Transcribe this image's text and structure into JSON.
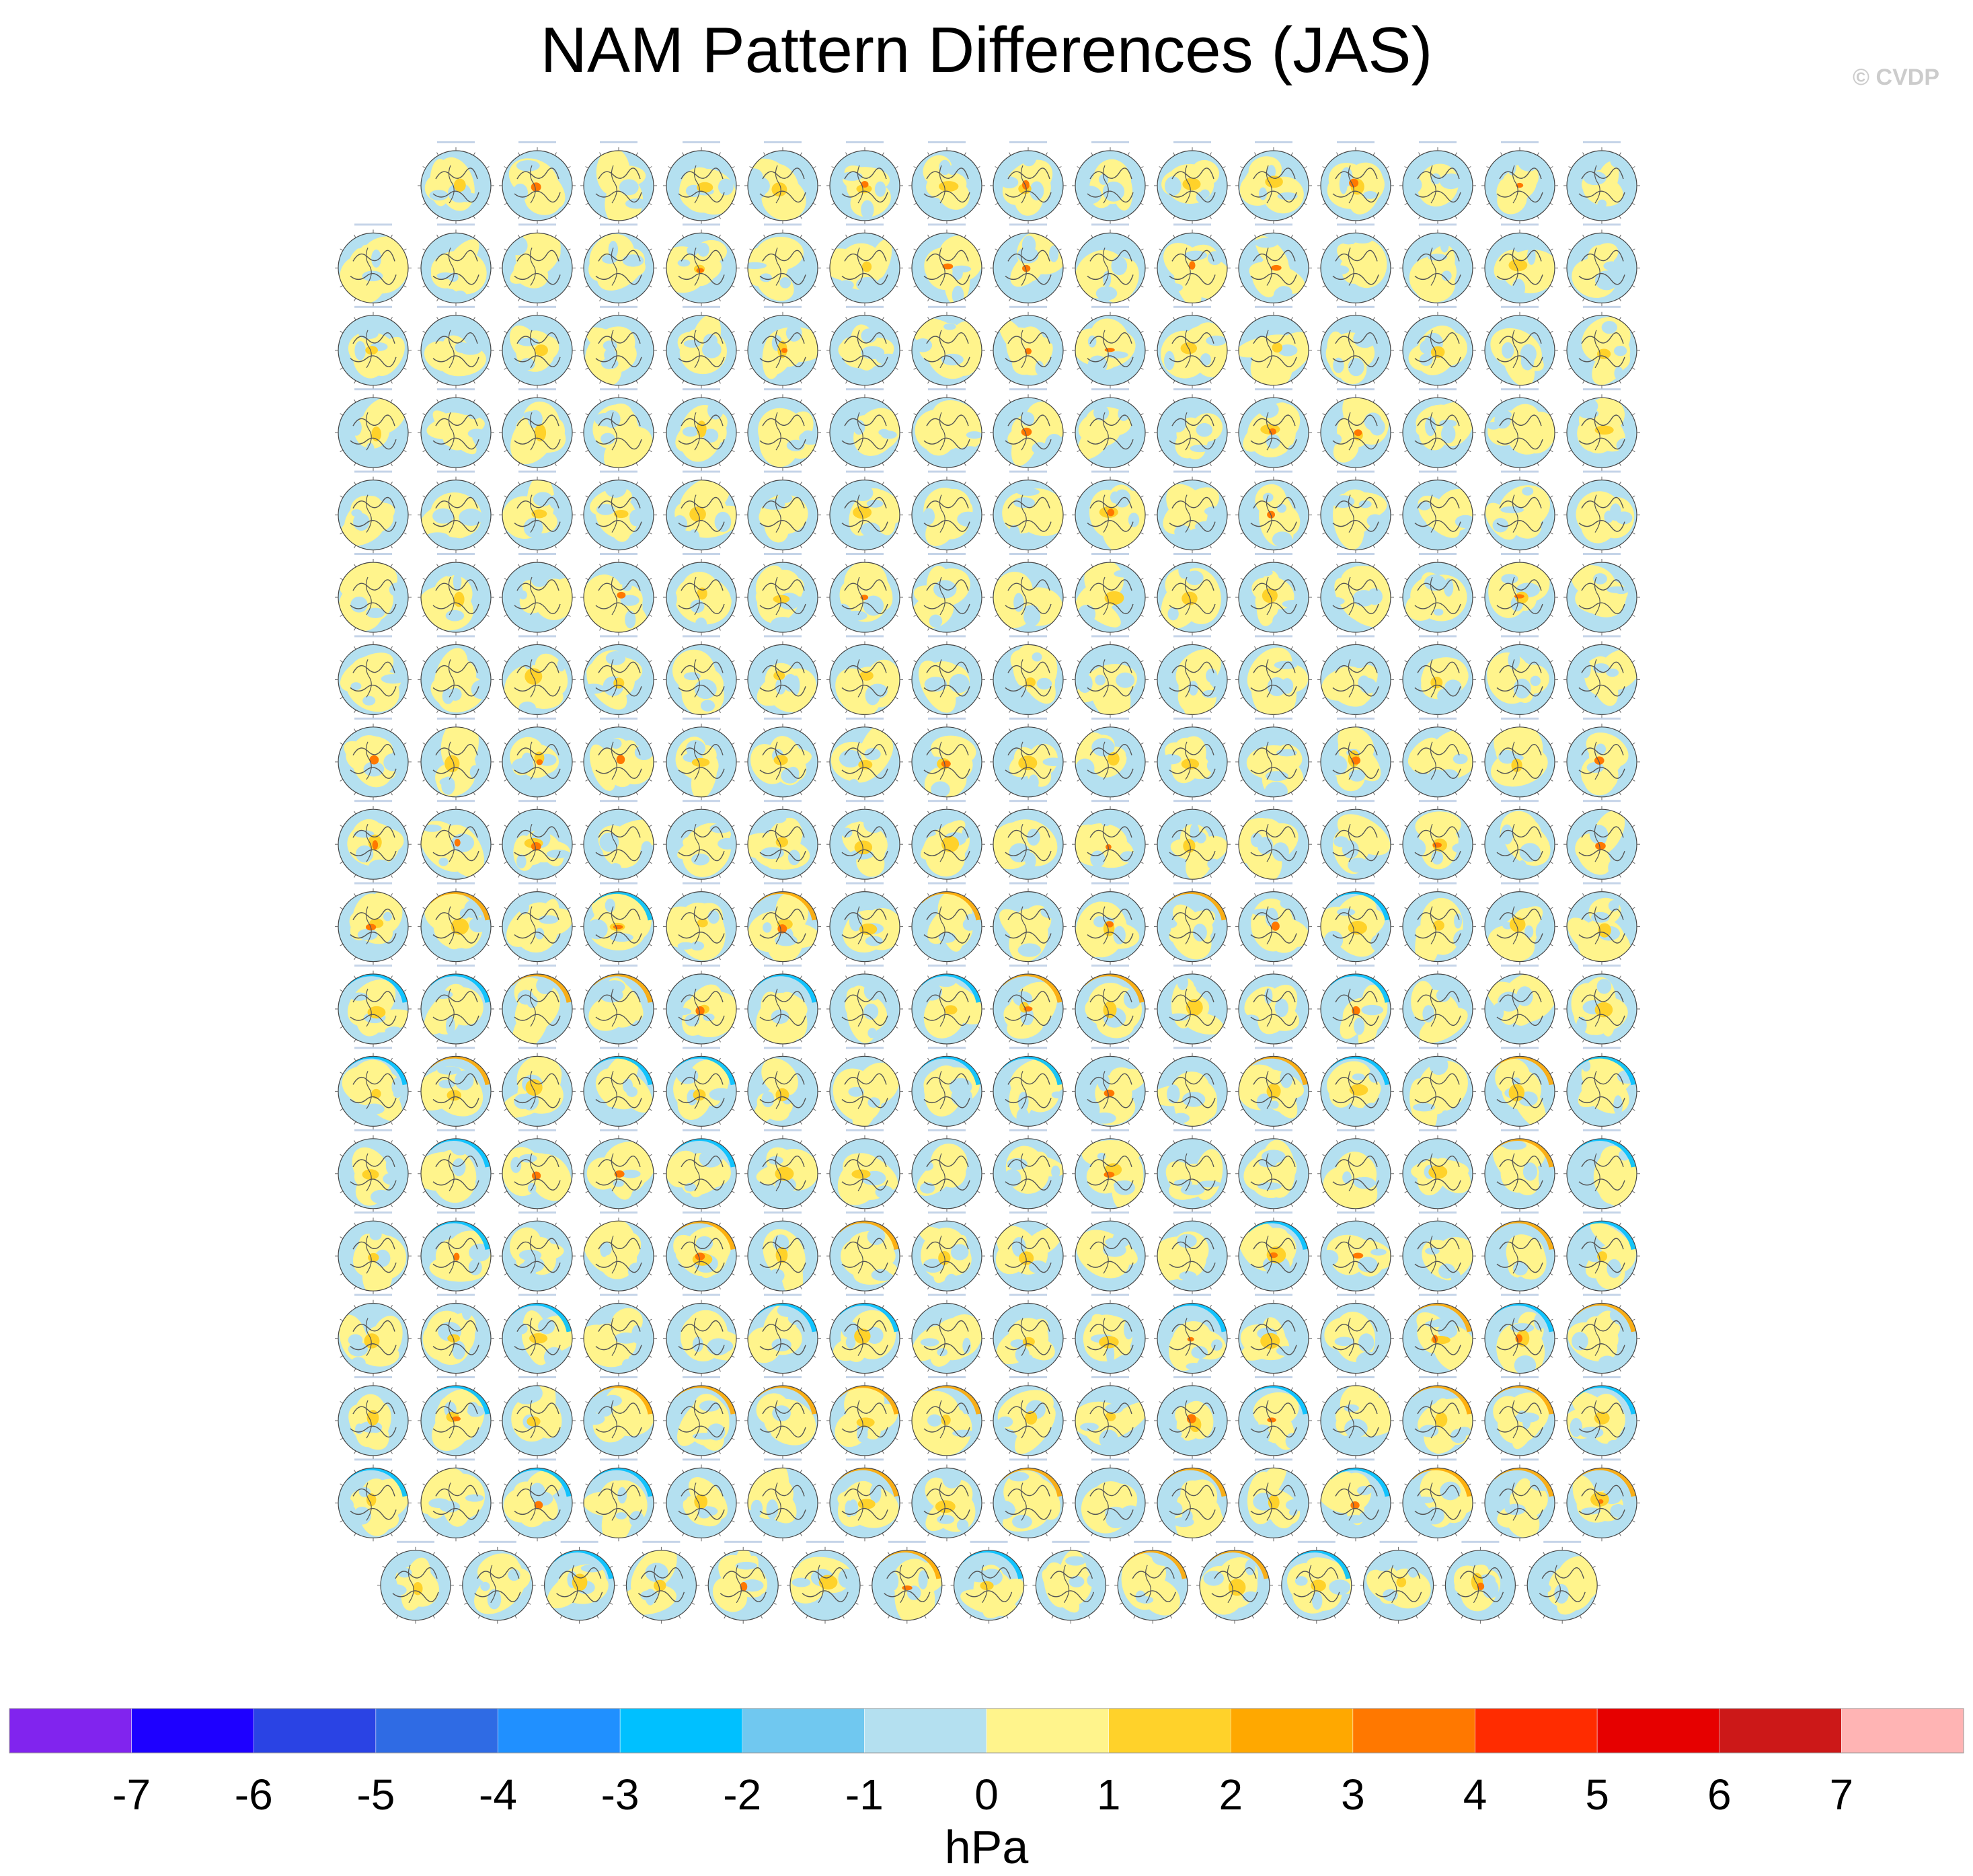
{
  "title": "NAM Pattern Differences (JAS)",
  "watermark": "© CVDP",
  "chart_data": {
    "type": "heatmap",
    "title": "NAM Pattern Differences (JAS)",
    "panel_rows": [
      {
        "row": 1,
        "count": 15
      },
      {
        "row": 2,
        "count": 16
      },
      {
        "row": 3,
        "count": 16
      },
      {
        "row": 4,
        "count": 16
      },
      {
        "row": 5,
        "count": 16
      },
      {
        "row": 6,
        "count": 16
      },
      {
        "row": 7,
        "count": 16
      },
      {
        "row": 8,
        "count": 16
      },
      {
        "row": 9,
        "count": 16
      },
      {
        "row": 10,
        "count": 16
      },
      {
        "row": 11,
        "count": 16
      },
      {
        "row": 12,
        "count": 16
      },
      {
        "row": 13,
        "count": 16
      },
      {
        "row": 14,
        "count": 16
      },
      {
        "row": 15,
        "count": 16
      },
      {
        "row": 16,
        "count": 16
      },
      {
        "row": 17,
        "count": 16
      },
      {
        "row": 18,
        "count": 15
      }
    ],
    "colorbar": {
      "label": "hPa",
      "tick_labels": [
        "-7",
        "-6",
        "-5",
        "-4",
        "-3",
        "-2",
        "-1",
        "0",
        "1",
        "2",
        "3",
        "4",
        "5",
        "6",
        "7"
      ],
      "levels": [
        -7,
        -6,
        -5,
        -4,
        -3,
        -2,
        -1,
        0,
        1,
        2,
        3,
        4,
        5,
        6,
        7
      ],
      "colors": [
        "#8124ee",
        "#1e00ff",
        "#2a43e4",
        "#2f6be4",
        "#2090ff",
        "#00c0ff",
        "#70c8f0",
        "#b4e0f0",
        "#fff48c",
        "#ffd22a",
        "#ffa800",
        "#ff7800",
        "#ff2c00",
        "#e60000",
        "#cc1818",
        "#ffb4b4"
      ]
    }
  }
}
